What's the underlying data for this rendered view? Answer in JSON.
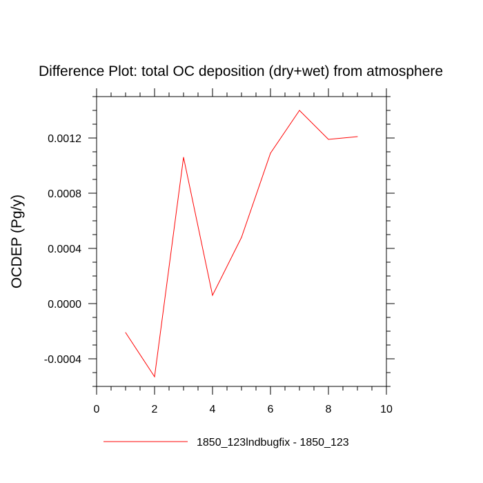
{
  "chart_data": {
    "type": "line",
    "title": "Difference Plot: total OC deposition (dry+wet) from atmosphere",
    "xlabel": "",
    "ylabel": "OCDEP  (Pg/y)",
    "xlim": [
      0,
      10
    ],
    "ylim": [
      -0.0006,
      0.0015
    ],
    "x_ticks": [
      0,
      2,
      4,
      6,
      8,
      10
    ],
    "x_tick_labels": [
      "0",
      "2",
      "4",
      "6",
      "8",
      "10"
    ],
    "x_minor_step": 0.5,
    "y_ticks": [
      -0.0004,
      0.0,
      0.0004,
      0.0008,
      0.0012
    ],
    "y_tick_labels": [
      "-0.0004",
      "0.0000",
      "0.0004",
      "0.0008",
      "0.0012"
    ],
    "y_minor_step": 0.0001,
    "grid": false,
    "legend_position": "bottom",
    "series": [
      {
        "name": "1850_123lndbugfix - 1850_123",
        "color": "#ff0000",
        "x": [
          1,
          2,
          3,
          4,
          5,
          6,
          7,
          8,
          9
        ],
        "y": [
          -0.00021,
          -0.00053,
          0.00106,
          6e-05,
          0.00048,
          0.00109,
          0.0014,
          0.00119,
          0.00121
        ]
      }
    ]
  }
}
